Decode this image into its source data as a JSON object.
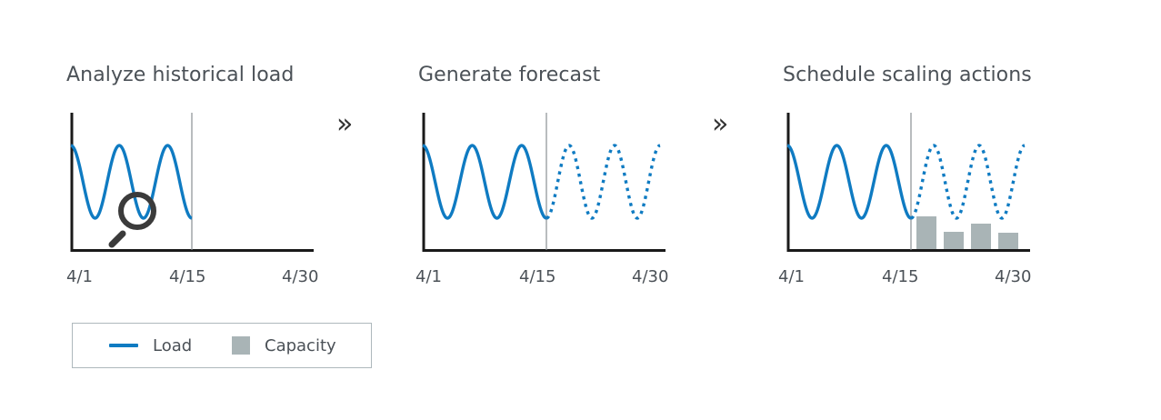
{
  "steps": [
    {
      "title": "Analyze historical load",
      "ticks": [
        "4/1",
        "4/15",
        "4/30"
      ]
    },
    {
      "title": "Generate forecast",
      "ticks": [
        "4/1",
        "4/15",
        "4/30"
      ]
    },
    {
      "title": "Schedule scaling actions",
      "ticks": [
        "4/1",
        "4/15",
        "4/30"
      ]
    }
  ],
  "arrows": [
    "»",
    "»"
  ],
  "legend": {
    "load_label": "Load",
    "capacity_label": "Capacity"
  },
  "colors": {
    "load": "#0f7bc2",
    "capacity": "#a9b4b6",
    "axis": "#1a1a1a",
    "divider": "#8a8f94",
    "magnifier": "#3b3b3b"
  },
  "icons": [
    "magnifier-icon",
    "double-chevron-right-icon"
  ]
}
